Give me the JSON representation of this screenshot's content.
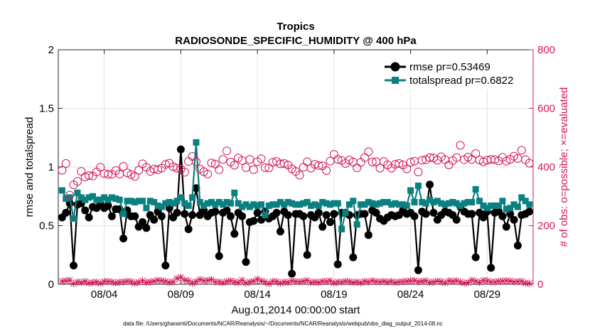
{
  "chart_data": {
    "type": "line",
    "title": "Tropics",
    "subtitle": "RADIOSONDE_SPECIFIC_HUMIDITY @ 400 hPa",
    "xlabel": "Aug.01,2014 00:00:00 start",
    "ylabel": "rmse and totalspread",
    "ylabel_right": "# of obs: o=possible; ×=evaluated",
    "footer": "data file: /Users/gharamti/Documents/NCAR/Reanalysis/~/Documents/NCAR/Reanalysis/webpub/obs_diag_output_2014-08.nc",
    "xlim": [
      1,
      32
    ],
    "ylim": [
      0,
      2
    ],
    "ylim_right": [
      0,
      800
    ],
    "x_ticks": [
      4,
      9,
      14,
      19,
      24,
      29
    ],
    "x_tick_labels": [
      "08/04",
      "08/09",
      "08/14",
      "08/19",
      "08/24",
      "08/29"
    ],
    "y_ticks": [
      0,
      0.5,
      1,
      1.5,
      2
    ],
    "y_tick_labels": [
      "0",
      "0.5",
      "1",
      "1.5",
      "2"
    ],
    "y_ticks_right": [
      0,
      200,
      400,
      600,
      800
    ],
    "y_tick_labels_right": [
      "0",
      "200",
      "400",
      "600",
      "800"
    ],
    "grid": "on",
    "legend_position": "top-right",
    "x": [
      1.25,
      1.5,
      1.75,
      2.0,
      2.25,
      2.5,
      2.75,
      3.0,
      3.25,
      3.5,
      3.75,
      4.0,
      4.25,
      4.5,
      4.75,
      5.0,
      5.25,
      5.5,
      5.75,
      6.0,
      6.25,
      6.5,
      6.75,
      7.0,
      7.25,
      7.5,
      7.75,
      8.0,
      8.25,
      8.5,
      8.75,
      9.0,
      9.25,
      9.5,
      9.75,
      10.0,
      10.25,
      10.5,
      10.75,
      11.0,
      11.25,
      11.5,
      11.75,
      12.0,
      12.25,
      12.5,
      12.75,
      13.0,
      13.25,
      13.5,
      13.75,
      14.0,
      14.25,
      14.5,
      14.75,
      15.0,
      15.25,
      15.5,
      15.75,
      16.0,
      16.25,
      16.5,
      16.75,
      17.0,
      17.25,
      17.5,
      17.75,
      18.0,
      18.25,
      18.5,
      18.75,
      19.0,
      19.25,
      19.5,
      19.75,
      20.0,
      20.25,
      20.5,
      20.75,
      21.0,
      21.25,
      21.5,
      21.75,
      22.0,
      22.25,
      22.5,
      22.75,
      23.0,
      23.25,
      23.5,
      23.75,
      24.0,
      24.25,
      24.5,
      24.75,
      25.0,
      25.25,
      25.5,
      25.75,
      26.0,
      26.25,
      26.5,
      26.75,
      27.0,
      27.25,
      27.5,
      27.75,
      28.0,
      28.25,
      28.5,
      28.75,
      29.0,
      29.25,
      29.5,
      29.75,
      30.0,
      30.25,
      30.5,
      30.75,
      31.0,
      31.25,
      31.5,
      31.75
    ],
    "series": [
      {
        "name": "rmse pr=0.53469",
        "color": "#000000",
        "marker": "circle",
        "axis": "left",
        "values": [
          0.57,
          0.61,
          0.69,
          0.16,
          0.68,
          0.69,
          0.63,
          0.57,
          0.66,
          0.65,
          0.69,
          0.65,
          0.67,
          0.58,
          0.64,
          0.64,
          0.39,
          0.63,
          0.58,
          0.58,
          0.49,
          0.53,
          0.48,
          0.59,
          0.55,
          0.62,
          0.58,
          0.16,
          0.65,
          0.57,
          0.61,
          1.15,
          0.6,
          0.47,
          0.59,
          0.82,
          0.59,
          0.63,
          0.58,
          0.61,
          0.62,
          0.24,
          0.61,
          0.63,
          0.58,
          0.43,
          0.61,
          0.58,
          0.19,
          0.53,
          0.54,
          0.61,
          0.55,
          0.62,
          0.56,
          0.58,
          0.61,
          0.45,
          0.62,
          0.59,
          0.09,
          0.6,
          0.6,
          0.58,
          0.25,
          0.59,
          0.57,
          0.61,
          0.49,
          0.59,
          0.53,
          0.6,
          0.17,
          0.61,
          0.61,
          0.59,
          0.23,
          0.59,
          0.6,
          0.6,
          0.42,
          0.63,
          0.61,
          0.56,
          0.54,
          0.57,
          0.59,
          0.58,
          0.59,
          0.63,
          0.6,
          0.61,
          0.58,
          0.12,
          0.62,
          0.6,
          0.85,
          0.61,
          0.55,
          0.59,
          0.62,
          0.61,
          0.59,
          0.55,
          0.66,
          0.62,
          0.6,
          0.6,
          0.23,
          0.61,
          0.57,
          0.62,
          0.14,
          0.61,
          0.62,
          0.58,
          0.49,
          0.6,
          0.55,
          0.33,
          0.59,
          0.6,
          0.62
        ]
      },
      {
        "name": "totalspread pr=0.6822",
        "color": "#0a8080",
        "marker": "square",
        "axis": "left",
        "values": [
          0.8,
          0.73,
          0.74,
          0.56,
          0.78,
          0.74,
          0.72,
          0.74,
          0.75,
          0.72,
          0.72,
          0.74,
          0.72,
          0.74,
          0.73,
          0.72,
          0.6,
          0.71,
          0.71,
          0.7,
          0.71,
          0.71,
          0.65,
          0.71,
          0.7,
          0.67,
          0.66,
          0.69,
          0.7,
          0.69,
          0.71,
          0.74,
          0.69,
          0.67,
          0.74,
          1.21,
          0.7,
          0.67,
          0.69,
          0.7,
          0.68,
          0.7,
          0.68,
          0.7,
          0.69,
          0.78,
          0.69,
          0.66,
          0.68,
          0.66,
          0.68,
          0.67,
          0.68,
          0.59,
          0.67,
          0.68,
          0.68,
          0.7,
          0.68,
          0.7,
          0.69,
          0.68,
          0.68,
          0.69,
          0.7,
          0.67,
          0.68,
          0.67,
          0.7,
          0.69,
          0.68,
          0.69,
          0.69,
          0.47,
          0.61,
          0.68,
          0.71,
          0.51,
          0.68,
          0.68,
          0.7,
          0.69,
          0.68,
          0.69,
          0.7,
          0.7,
          0.68,
          0.69,
          0.68,
          0.68,
          0.67,
          0.8,
          0.7,
          0.84,
          0.7,
          0.69,
          0.72,
          0.7,
          0.71,
          0.69,
          0.68,
          0.69,
          0.7,
          0.69,
          0.67,
          0.69,
          0.7,
          0.7,
          0.81,
          0.71,
          0.67,
          0.65,
          0.67,
          0.67,
          0.67,
          0.71,
          0.64,
          0.65,
          0.68,
          0.66,
          0.74,
          0.71,
          0.68
        ]
      },
      {
        "name": "obs possible",
        "color": "#d4145a",
        "marker": "circle-open",
        "axis": "right",
        "values": [
          389,
          412,
          304,
          339,
          351,
          385,
          366,
          371,
          369,
          383,
          399,
          378,
          375,
          375,
          388,
          376,
          402,
          380,
          374,
          368,
          389,
          411,
          399,
          385,
          393,
          391,
          396,
          409,
          413,
          401,
          396,
          393,
          382,
          419,
          436,
          418,
          393,
          384,
          376,
          414,
          410,
          391,
          426,
          455,
          417,
          406,
          431,
          422,
          398,
          426,
          391,
          418,
          428,
          398,
          397,
          416,
          419,
          411,
          412,
          407,
          394,
          385,
          372,
          399,
          418,
          396,
          409,
          405,
          404,
          388,
          420,
          443,
          426,
          422,
          412,
          424,
          417,
          397,
          416,
          432,
          452,
          417,
          418,
          396,
          419,
          407,
          396,
          409,
          412,
          407,
          394,
          416,
          420,
          383,
          423,
          425,
          432,
          431,
          423,
          435,
          425,
          407,
          422,
          432,
          474,
          425,
          434,
          426,
          446,
          424,
          418,
          423,
          426,
          425,
          421,
          433,
          420,
          426,
          437,
          429,
          457,
          425,
          413
        ]
      },
      {
        "name": "obs evaluated",
        "color": "#d4145a",
        "marker": "x",
        "axis": "right",
        "values": [
          10,
          12,
          14,
          2,
          8,
          6,
          10,
          4,
          6,
          8,
          3,
          10,
          9,
          8,
          5,
          7,
          8,
          10,
          9,
          4,
          7,
          12,
          6,
          8,
          10,
          14,
          12,
          10,
          6,
          8,
          20,
          24,
          14,
          12,
          4,
          9,
          16,
          12,
          13,
          16,
          8,
          8,
          5,
          10,
          12,
          8,
          6,
          14,
          4,
          8,
          10,
          18,
          11,
          8,
          2,
          10,
          9,
          4,
          8,
          6,
          12,
          9,
          8,
          10,
          13,
          6,
          8,
          6,
          10,
          9,
          12,
          4,
          8,
          7,
          10,
          9,
          6,
          8,
          5,
          10,
          8,
          12,
          9,
          8,
          10,
          7,
          10,
          6,
          8,
          9,
          10,
          12,
          13,
          8,
          10,
          12,
          6,
          8,
          11,
          9,
          5,
          12,
          10,
          12,
          8,
          4,
          6,
          14,
          10,
          6,
          13,
          12,
          8,
          8,
          10,
          11,
          12,
          11,
          8,
          9,
          10,
          4,
          3
        ]
      }
    ]
  }
}
